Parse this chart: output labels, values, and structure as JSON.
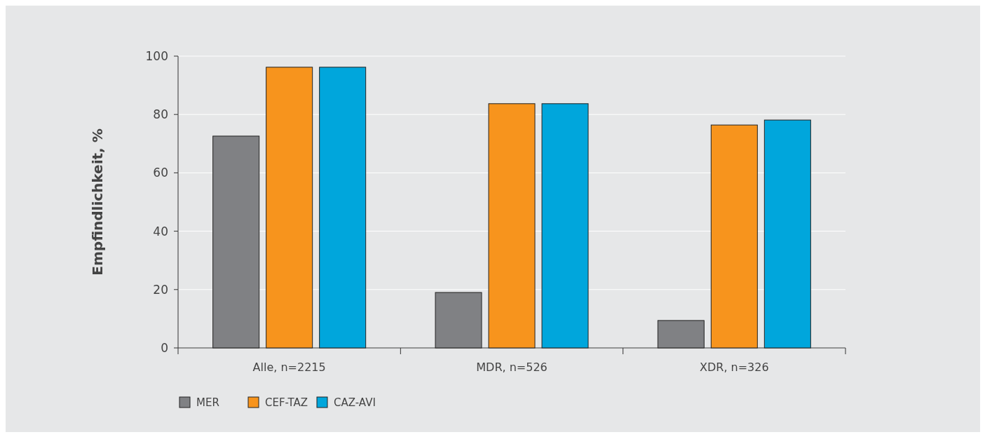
{
  "chart_data": {
    "type": "bar",
    "ylabel": "Empfindlichkeit, %",
    "categories": [
      "Alle, n=2215",
      "MDR, n=526",
      "XDR, n=326"
    ],
    "series": [
      {
        "name": "MER",
        "color": "#808184",
        "values": [
          72.6,
          19,
          9.4
        ]
      },
      {
        "name": "CEF-TAZ",
        "color": "#f7941d",
        "values": [
          96.2,
          83.7,
          76.4
        ]
      },
      {
        "name": "CAZ-AVI",
        "color": "#00a6dc",
        "values": [
          96.2,
          83.7,
          78.1
        ]
      }
    ],
    "ylim": [
      0,
      100
    ],
    "yticks": [
      0,
      20,
      40,
      60,
      80,
      100
    ],
    "grid": "y",
    "legend": "bottom left"
  }
}
